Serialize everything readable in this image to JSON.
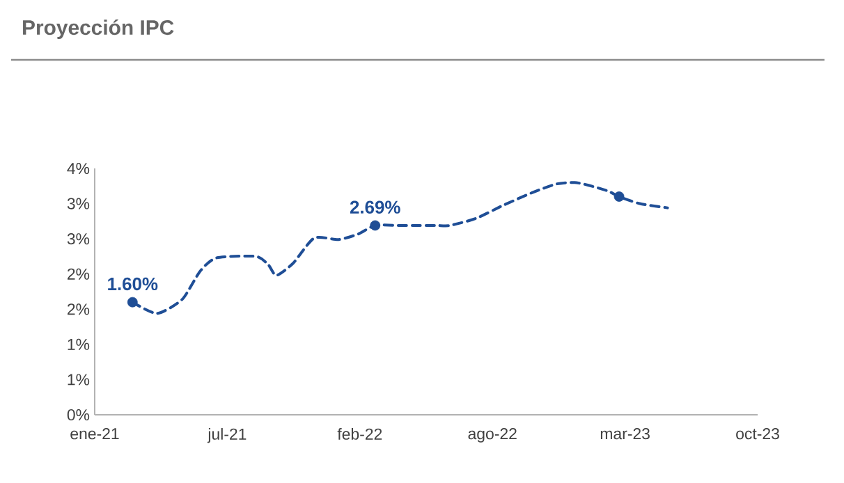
{
  "chart_data": {
    "type": "line",
    "title": "Proyección IPC",
    "xlim": [
      "2021-01-06",
      "2023-10-03"
    ],
    "xticks": [
      {
        "value": "2021-01-06",
        "label": "ene-21"
      },
      {
        "value": "2021-07-25",
        "label": "jul-21"
      },
      {
        "value": "2022-02-10",
        "label": "feb-22"
      },
      {
        "value": "2022-08-29",
        "label": "ago-22"
      },
      {
        "value": "2023-03-17",
        "label": "mar-23"
      },
      {
        "value": "2023-10-03",
        "label": "oct-23"
      }
    ],
    "ylim": [
      0,
      3.5
    ],
    "yticks": [
      {
        "value": 0,
        "label": "0%"
      },
      {
        "value": 0.5,
        "label": "1%"
      },
      {
        "value": 1,
        "label": "1%"
      },
      {
        "value": 1.5,
        "label": "2%"
      },
      {
        "value": 2,
        "label": "2%"
      },
      {
        "value": 2.5,
        "label": "3%"
      },
      {
        "value": 3,
        "label": "3%"
      },
      {
        "value": 3.5,
        "label": "4%"
      }
    ],
    "series": [
      {
        "color": "#1f4e96",
        "line_style": "dashed",
        "marker": "none",
        "x": [
          "2021-03-04",
          "2021-04-10",
          "2021-05-18",
          "2021-06-14",
          "2021-07-09",
          "2021-09-06",
          "2021-09-25",
          "2021-10-07",
          "2021-11-01",
          "2021-12-03",
          "2022-01-09",
          "2022-02-08",
          "2022-03-05",
          "2022-04-11",
          "2022-05-02",
          "2022-06-05",
          "2022-06-26",
          "2022-08-04",
          "2022-09-15",
          "2022-10-29",
          "2022-12-04",
          "2022-12-31",
          "2023-01-21",
          "2023-02-19",
          "2023-03-08",
          "2023-04-08",
          "2023-05-20"
        ],
        "values": [
          1.6,
          1.44,
          1.64,
          2.04,
          2.23,
          2.25,
          2.13,
          1.98,
          2.15,
          2.51,
          2.49,
          2.57,
          2.69,
          2.69,
          2.69,
          2.69,
          2.69,
          2.79,
          2.98,
          3.16,
          3.28,
          3.3,
          3.26,
          3.18,
          3.1,
          3.0,
          2.94
        ]
      },
      {
        "type": "scatter",
        "color": "#1f4e96",
        "marker": "circle",
        "x": [
          "2021-03-04",
          "2022-03-05",
          "2023-03-08"
        ],
        "values": [
          1.6,
          2.69,
          3.1
        ],
        "value_labels": [
          "1.60%",
          "2.69%",
          null
        ]
      }
    ]
  }
}
